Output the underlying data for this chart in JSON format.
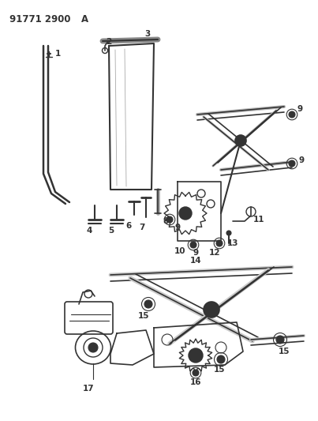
{
  "title": "91771 2900A",
  "bg_color": "#ffffff",
  "line_color": "#333333",
  "fig_width": 4.03,
  "fig_height": 5.33,
  "dpi": 100
}
